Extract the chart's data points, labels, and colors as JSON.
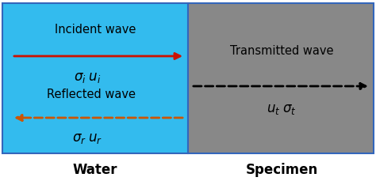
{
  "water_color": "#33bbee",
  "specimen_color": "#888888",
  "bg_color": "#ffffff",
  "border_color": "#3366bb",
  "text_color": "#000000",
  "incident_arrow_color": "#cc1100",
  "reflected_arrow_color": "#cc5500",
  "transmitted_arrow_color": "#000000",
  "water_label": "Water",
  "specimen_label": "Specimen",
  "incident_label": "Incident wave",
  "sigma_i_u_i": "$\\sigma_i \\; u_i$",
  "reflected_label": "Reflected wave",
  "sigma_r_u_r": "$\\sigma_r \\; u_r$",
  "transmitted_label": "Transmitted wave",
  "u_t_sigma_t": "$u_t \\; \\sigma_t$",
  "figsize": [
    4.74,
    2.3
  ],
  "dpi": 100
}
